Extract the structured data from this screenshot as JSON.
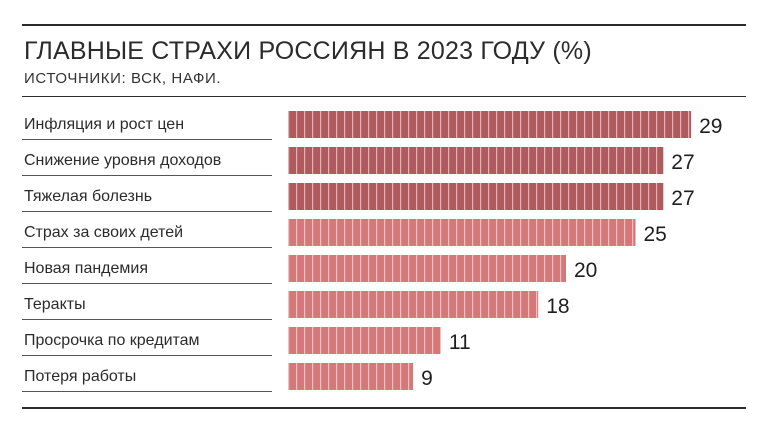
{
  "chart_data": {
    "type": "bar",
    "orientation": "horizontal",
    "title": "ГЛАВНЫЕ СТРАХИ РОССИЯН В 2023 ГОДУ (%)",
    "subtitle": "ИСТОЧНИКИ: ВСК, НАФИ.",
    "categories": [
      "Инфляция и рост цен",
      "Снижение уровня доходов",
      "Тяжелая болезнь",
      "Страх за своих детей",
      "Новая пандемия",
      "Теракты",
      "Просрочка по кредитам",
      "Потеря работы"
    ],
    "values": [
      29,
      27,
      27,
      25,
      20,
      18,
      11,
      9
    ],
    "value_labels": [
      "29",
      "27",
      "27",
      "25",
      "20",
      "18",
      "11",
      "9"
    ],
    "bar_colors": [
      "#b05a5e",
      "#b05a5e",
      "#b05a5e",
      "#d4787a",
      "#d4787a",
      "#d4787a",
      "#d4787a",
      "#d4787a"
    ],
    "grid": false,
    "legend": "none"
  }
}
